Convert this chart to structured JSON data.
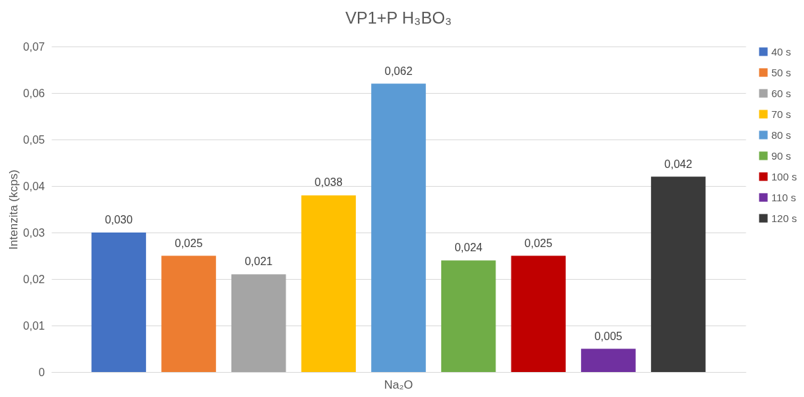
{
  "chart_data": {
    "type": "bar",
    "title": "VP1+P H₃BO₃",
    "ylabel": "Intenzita (kcps)",
    "categories": [
      "Na₂O"
    ],
    "series": [
      {
        "name": "40 s",
        "color": "#4472c4",
        "values": [
          0.03
        ],
        "value_labels": [
          "0,030"
        ]
      },
      {
        "name": "50 s",
        "color": "#ed7d31",
        "values": [
          0.025
        ],
        "value_labels": [
          "0,025"
        ]
      },
      {
        "name": "60 s",
        "color": "#a5a5a5",
        "values": [
          0.021
        ],
        "value_labels": [
          "0,021"
        ]
      },
      {
        "name": "70 s",
        "color": "#ffc000",
        "values": [
          0.038
        ],
        "value_labels": [
          "0,038"
        ]
      },
      {
        "name": "80 s",
        "color": "#5b9bd5",
        "values": [
          0.062
        ],
        "value_labels": [
          "0,062"
        ]
      },
      {
        "name": "90 s",
        "color": "#70ad47",
        "values": [
          0.024
        ],
        "value_labels": [
          "0,024"
        ]
      },
      {
        "name": "100 s",
        "color": "#c00000",
        "values": [
          0.025
        ],
        "value_labels": [
          "0,025"
        ]
      },
      {
        "name": "110 s",
        "color": "#7030a0",
        "values": [
          0.005
        ],
        "value_labels": [
          "0,005"
        ]
      },
      {
        "name": "120 s",
        "color": "#3a3a3a",
        "values": [
          0.042
        ],
        "value_labels": [
          "0,042"
        ]
      }
    ],
    "ylim": [
      0,
      0.07
    ],
    "yticks": [
      0,
      {
        "value": 0.01,
        "label": "0,01"
      },
      {
        "value": 0.02,
        "label": "0,02"
      },
      {
        "value": 0.03,
        "label": "0,03"
      },
      {
        "value": 0.04,
        "label": "0,04"
      },
      {
        "value": 0.05,
        "label": "0,05"
      },
      {
        "value": 0.06,
        "label": "0,06"
      },
      {
        "value": 0.07,
        "label": "0,07"
      }
    ],
    "grid": "y",
    "legend": "right"
  }
}
